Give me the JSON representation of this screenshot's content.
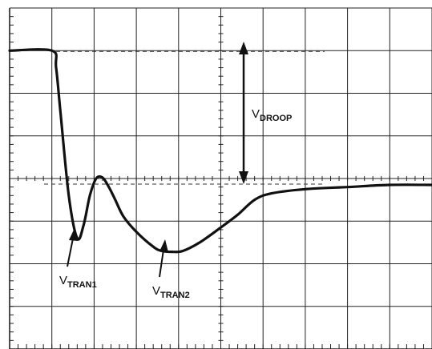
{
  "chart_data": {
    "type": "line",
    "title": "",
    "xlabel": "",
    "ylabel": "",
    "grid": true,
    "grid_divisions": {
      "x": 10,
      "y": 8
    },
    "xlim": [
      0,
      10
    ],
    "ylim": [
      0,
      8
    ],
    "series": [
      {
        "name": "",
        "x": [
          0,
          1.0,
          1.1,
          1.2,
          1.4,
          1.6,
          1.75,
          1.9,
          2.05,
          2.2,
          2.35,
          2.5,
          2.7,
          3.0,
          3.4,
          3.6,
          3.85,
          4.1,
          4.5,
          5.0,
          5.4,
          5.8,
          6.2,
          7.0,
          8.0,
          9.0,
          10.0
        ],
        "y": [
          7.0,
          7.0,
          6.6,
          5.6,
          3.6,
          2.6,
          2.9,
          3.6,
          4.0,
          4.02,
          3.8,
          3.5,
          3.1,
          2.75,
          2.4,
          2.3,
          2.28,
          2.3,
          2.5,
          2.85,
          3.15,
          3.5,
          3.65,
          3.75,
          3.8,
          3.85,
          3.85
        ]
      }
    ],
    "annotations": [
      {
        "id": "vdroop",
        "main": "V",
        "sub": "DROOP"
      },
      {
        "id": "vtran1",
        "main": "V",
        "sub": "TRAN1"
      },
      {
        "id": "vtran2",
        "main": "V",
        "sub": "TRAN2"
      }
    ]
  },
  "colors": {
    "trace": "#111111",
    "grid": "#222222",
    "background": "#ffffff"
  }
}
